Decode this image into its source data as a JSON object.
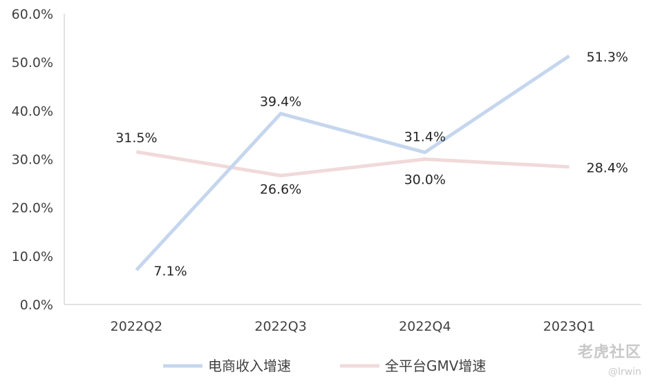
{
  "chart_data": {
    "type": "line",
    "categories": [
      "2022Q2",
      "2022Q3",
      "2022Q4",
      "2023Q1"
    ],
    "ylim": [
      0,
      60
    ],
    "yticks": [
      0,
      10,
      20,
      30,
      40,
      50,
      60
    ],
    "ytick_labels": [
      "0.0%",
      "10.0%",
      "20.0%",
      "30.0%",
      "40.0%",
      "50.0%",
      "60.0%"
    ],
    "grid": false,
    "legend_position": "bottom",
    "series": [
      {
        "name": "电商收入增速",
        "color": "#c5d6ee",
        "values": [
          7.1,
          39.4,
          31.4,
          51.3
        ],
        "labels": [
          "7.1%",
          "39.4%",
          "31.4%",
          "51.3%"
        ]
      },
      {
        "name": "全平台GMV增速",
        "color": "#f1d9da",
        "values": [
          31.5,
          26.6,
          30.0,
          28.4
        ],
        "labels": [
          "31.5%",
          "26.6%",
          "30.0%",
          "28.4%"
        ]
      }
    ]
  },
  "watermark": {
    "logo_text": "老虎社区",
    "user_text": "@lrwin"
  }
}
